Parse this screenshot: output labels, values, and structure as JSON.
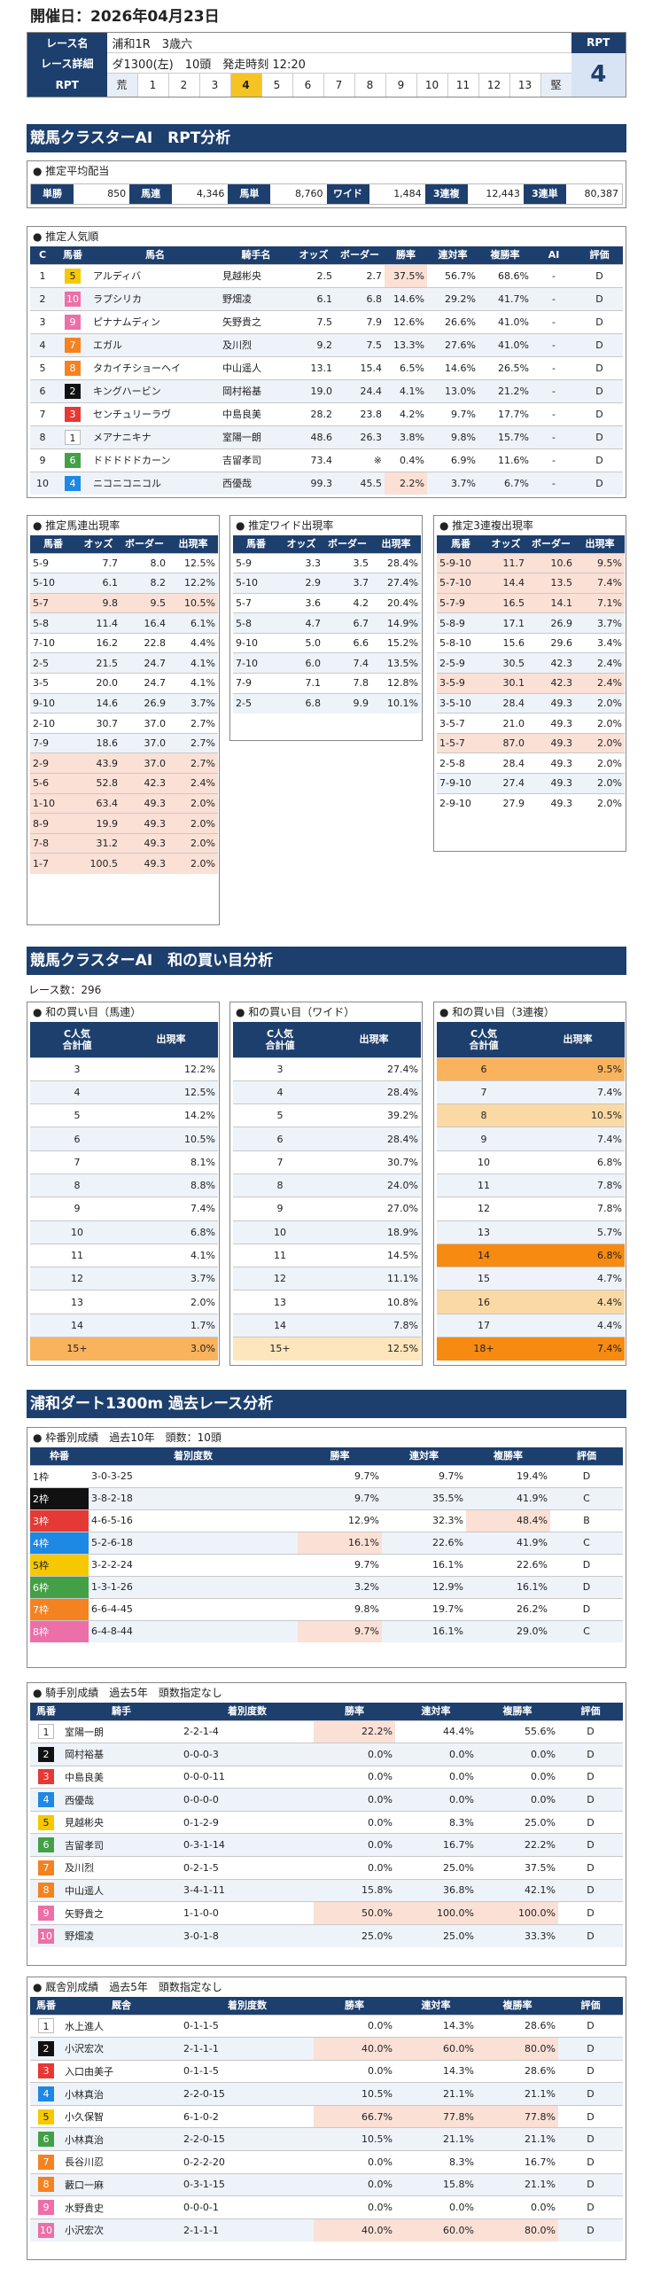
{
  "header": {
    "title": "開催日：2026年04月23日"
  },
  "race": {
    "name_label": "レース名",
    "name": "浦和1R　3歳六",
    "detail_label": "レース詳細",
    "detail": "ダ1300(左)　10頭　発走時刻 12:20",
    "rpt_label": "RPT",
    "rpt_scale": [
      "荒",
      "1",
      "2",
      "3",
      "4",
      "5",
      "6",
      "7",
      "8",
      "9",
      "10",
      "11",
      "12",
      "13",
      "堅"
    ],
    "rpt_selected": 4,
    "rpt_box_label": "RPT",
    "rpt_value": "4"
  },
  "sec1": {
    "title": "競馬クラスターAI　RPT分析"
  },
  "payout": {
    "title": "推定平均配当",
    "items": [
      {
        "label": "単勝",
        "value": "850"
      },
      {
        "label": "馬連",
        "value": "4,346"
      },
      {
        "label": "馬単",
        "value": "8,760"
      },
      {
        "label": "ワイド",
        "value": "1,484"
      },
      {
        "label": "3連複",
        "value": "12,443"
      },
      {
        "label": "3連単",
        "value": "80,387"
      }
    ]
  },
  "popularity": {
    "title": "推定人気順",
    "headers": [
      "C",
      "馬番",
      "馬名",
      "騎手名",
      "オッズ",
      "ボーダー",
      "勝率",
      "連対率",
      "複勝率",
      "AI",
      "評価"
    ],
    "rows": [
      [
        "1",
        "5",
        "アルディバ",
        "見越彬央",
        "2.5",
        "2.7",
        "37.5%",
        "56.7%",
        "68.6%",
        "-",
        "D"
      ],
      [
        "2",
        "10",
        "ラプシリカ",
        "野畑凌",
        "6.1",
        "6.8",
        "14.6%",
        "29.2%",
        "41.7%",
        "-",
        "D"
      ],
      [
        "3",
        "9",
        "ピナナムディン",
        "矢野貴之",
        "7.5",
        "7.9",
        "12.6%",
        "26.6%",
        "41.0%",
        "-",
        "D"
      ],
      [
        "4",
        "7",
        "エガル",
        "及川烈",
        "9.2",
        "7.5",
        "13.3%",
        "27.6%",
        "41.0%",
        "-",
        "D"
      ],
      [
        "5",
        "8",
        "タカイチショーヘイ",
        "中山遥人",
        "13.1",
        "15.4",
        "6.5%",
        "14.6%",
        "26.5%",
        "-",
        "D"
      ],
      [
        "6",
        "2",
        "キングハービン",
        "岡村裕基",
        "19.0",
        "24.4",
        "4.1%",
        "13.0%",
        "21.2%",
        "-",
        "D"
      ],
      [
        "7",
        "3",
        "センチュリーラヴ",
        "中島良美",
        "28.2",
        "23.8",
        "4.2%",
        "9.7%",
        "17.7%",
        "-",
        "D"
      ],
      [
        "8",
        "1",
        "メアナニキナ",
        "室陽一朗",
        "48.6",
        "26.3",
        "3.8%",
        "9.8%",
        "15.7%",
        "-",
        "D"
      ],
      [
        "9",
        "6",
        "ドドドドドカーン",
        "吉留孝司",
        "73.4",
        "※",
        "0.4%",
        "6.9%",
        "11.6%",
        "-",
        "D"
      ],
      [
        "10",
        "4",
        "ニコニコニコル",
        "西優哉",
        "99.3",
        "45.5",
        "2.2%",
        "3.7%",
        "6.7%",
        "-",
        "D"
      ]
    ]
  },
  "umaren": {
    "title": "推定馬連出現率",
    "headers": [
      "馬番",
      "オッズ",
      "ボーダー",
      "出現率"
    ],
    "rows": [
      [
        "5-9",
        "7.7",
        "8.0",
        "12.5%"
      ],
      [
        "5-10",
        "6.1",
        "8.2",
        "12.2%"
      ],
      [
        "5-7",
        "9.8",
        "9.5",
        "10.5%"
      ],
      [
        "5-8",
        "11.4",
        "16.4",
        "6.1%"
      ],
      [
        "7-10",
        "16.2",
        "22.8",
        "4.4%"
      ],
      [
        "2-5",
        "21.5",
        "24.7",
        "4.1%"
      ],
      [
        "3-5",
        "20.0",
        "24.7",
        "4.1%"
      ],
      [
        "9-10",
        "14.6",
        "26.9",
        "3.7%"
      ],
      [
        "2-10",
        "30.7",
        "37.0",
        "2.7%"
      ],
      [
        "7-9",
        "18.6",
        "37.0",
        "2.7%"
      ],
      [
        "2-9",
        "43.9",
        "37.0",
        "2.7%"
      ],
      [
        "5-6",
        "52.8",
        "42.3",
        "2.4%"
      ],
      [
        "1-10",
        "63.4",
        "49.3",
        "2.0%"
      ],
      [
        "8-9",
        "19.9",
        "49.3",
        "2.0%"
      ],
      [
        "7-8",
        "31.2",
        "49.3",
        "2.0%"
      ],
      [
        "1-7",
        "100.5",
        "49.3",
        "2.0%"
      ]
    ]
  },
  "wide": {
    "title": "推定ワイド出現率",
    "headers": [
      "馬番",
      "オッズ",
      "ボーダー",
      "出現率"
    ],
    "rows": [
      [
        "5-9",
        "3.3",
        "3.5",
        "28.4%"
      ],
      [
        "5-10",
        "2.9",
        "3.7",
        "27.4%"
      ],
      [
        "5-7",
        "3.6",
        "4.2",
        "20.4%"
      ],
      [
        "5-8",
        "4.7",
        "6.7",
        "14.9%"
      ],
      [
        "9-10",
        "5.0",
        "6.6",
        "15.2%"
      ],
      [
        "7-10",
        "6.0",
        "7.4",
        "13.5%"
      ],
      [
        "7-9",
        "7.1",
        "7.8",
        "12.8%"
      ],
      [
        "2-5",
        "6.8",
        "9.9",
        "10.1%"
      ]
    ]
  },
  "sanren": {
    "title": "推定3連複出現率",
    "headers": [
      "馬番",
      "オッズ",
      "ボーダー",
      "出現率"
    ],
    "rows": [
      [
        "5-9-10",
        "11.7",
        "10.6",
        "9.5%"
      ],
      [
        "5-7-10",
        "14.4",
        "13.5",
        "7.4%"
      ],
      [
        "5-7-9",
        "16.5",
        "14.1",
        "7.1%"
      ],
      [
        "5-8-9",
        "17.1",
        "26.9",
        "3.7%"
      ],
      [
        "5-8-10",
        "15.6",
        "29.6",
        "3.4%"
      ],
      [
        "2-5-9",
        "30.5",
        "42.3",
        "2.4%"
      ],
      [
        "3-5-9",
        "30.1",
        "42.3",
        "2.4%"
      ],
      [
        "3-5-10",
        "28.4",
        "49.3",
        "2.0%"
      ],
      [
        "3-5-7",
        "21.0",
        "49.3",
        "2.0%"
      ],
      [
        "1-5-7",
        "87.0",
        "49.3",
        "2.0%"
      ],
      [
        "2-5-8",
        "28.4",
        "49.3",
        "2.0%"
      ],
      [
        "7-9-10",
        "27.4",
        "49.3",
        "2.0%"
      ],
      [
        "2-9-10",
        "27.9",
        "49.3",
        "2.0%"
      ]
    ]
  },
  "sec2": {
    "title": "競馬クラスターAI　和の買い目分析",
    "count": "レース数：296"
  },
  "sum_umaren": {
    "title": "和の買い目（馬連）",
    "headers": [
      "C人気\n合計値",
      "出現率"
    ],
    "rows": [
      [
        "3",
        "12.2%"
      ],
      [
        "4",
        "12.5%"
      ],
      [
        "5",
        "14.2%"
      ],
      [
        "6",
        "10.5%"
      ],
      [
        "7",
        "8.1%"
      ],
      [
        "8",
        "8.8%"
      ],
      [
        "9",
        "7.4%"
      ],
      [
        "10",
        "6.8%"
      ],
      [
        "11",
        "4.1%"
      ],
      [
        "12",
        "3.7%"
      ],
      [
        "13",
        "2.0%"
      ],
      [
        "14",
        "1.7%"
      ],
      [
        "15+",
        "3.0%"
      ]
    ]
  },
  "sum_wide": {
    "title": "和の買い目（ワイド）",
    "headers": [
      "C人気\n合計値",
      "出現率"
    ],
    "rows": [
      [
        "3",
        "27.4%"
      ],
      [
        "4",
        "28.4%"
      ],
      [
        "5",
        "39.2%"
      ],
      [
        "6",
        "28.4%"
      ],
      [
        "7",
        "30.7%"
      ],
      [
        "8",
        "24.0%"
      ],
      [
        "9",
        "27.0%"
      ],
      [
        "10",
        "18.9%"
      ],
      [
        "11",
        "14.5%"
      ],
      [
        "12",
        "11.1%"
      ],
      [
        "13",
        "10.8%"
      ],
      [
        "14",
        "7.8%"
      ],
      [
        "15+",
        "12.5%"
      ]
    ]
  },
  "sum_sanren": {
    "title": "和の買い目（3連複）",
    "headers": [
      "C人気\n合計値",
      "出現率"
    ],
    "rows": [
      [
        "6",
        "9.5%"
      ],
      [
        "7",
        "7.4%"
      ],
      [
        "8",
        "10.5%"
      ],
      [
        "9",
        "7.4%"
      ],
      [
        "10",
        "6.8%"
      ],
      [
        "11",
        "7.8%"
      ],
      [
        "12",
        "7.8%"
      ],
      [
        "13",
        "5.7%"
      ],
      [
        "14",
        "6.8%"
      ],
      [
        "15",
        "4.7%"
      ],
      [
        "16",
        "4.4%"
      ],
      [
        "17",
        "4.4%"
      ],
      [
        "18+",
        "7.4%"
      ]
    ]
  },
  "sec3": {
    "title": "浦和ダート1300m 過去レース分析"
  },
  "waku": {
    "title": "枠番別成績　過去10年　頭数：10頭",
    "headers": [
      "枠番",
      "着別度数",
      "勝率",
      "連対率",
      "複勝率",
      "評価"
    ],
    "rows": [
      [
        "1枠",
        "3-0-3-25",
        "9.7%",
        "9.7%",
        "19.4%",
        "D"
      ],
      [
        "2枠",
        "3-8-2-18",
        "9.7%",
        "35.5%",
        "41.9%",
        "C"
      ],
      [
        "3枠",
        "4-6-5-16",
        "12.9%",
        "32.3%",
        "48.4%",
        "B"
      ],
      [
        "4枠",
        "5-2-6-18",
        "16.1%",
        "22.6%",
        "41.9%",
        "C"
      ],
      [
        "5枠",
        "3-2-2-24",
        "9.7%",
        "16.1%",
        "22.6%",
        "D"
      ],
      [
        "6枠",
        "1-3-1-26",
        "3.2%",
        "12.9%",
        "16.1%",
        "D"
      ],
      [
        "7枠",
        "6-6-4-45",
        "9.8%",
        "19.7%",
        "26.2%",
        "D"
      ],
      [
        "8枠",
        "6-4-8-44",
        "9.7%",
        "16.1%",
        "29.0%",
        "C"
      ]
    ]
  },
  "jockey": {
    "title": "騎手別成績　過去5年　頭数指定なし",
    "headers": [
      "馬番",
      "騎手",
      "着別度数",
      "勝率",
      "連対率",
      "複勝率",
      "評価"
    ],
    "rows": [
      [
        "1",
        "室陽一朗",
        "2-2-1-4",
        "22.2%",
        "44.4%",
        "55.6%",
        "D"
      ],
      [
        "2",
        "岡村裕基",
        "0-0-0-3",
        "0.0%",
        "0.0%",
        "0.0%",
        "D"
      ],
      [
        "3",
        "中島良美",
        "0-0-0-11",
        "0.0%",
        "0.0%",
        "0.0%",
        "D"
      ],
      [
        "4",
        "西優哉",
        "0-0-0-0",
        "0.0%",
        "0.0%",
        "0.0%",
        "D"
      ],
      [
        "5",
        "見越彬央",
        "0-1-2-9",
        "0.0%",
        "8.3%",
        "25.0%",
        "D"
      ],
      [
        "6",
        "吉留孝司",
        "0-3-1-14",
        "0.0%",
        "16.7%",
        "22.2%",
        "D"
      ],
      [
        "7",
        "及川烈",
        "0-2-1-5",
        "0.0%",
        "25.0%",
        "37.5%",
        "D"
      ],
      [
        "8",
        "中山遥人",
        "3-4-1-11",
        "15.8%",
        "36.8%",
        "42.1%",
        "D"
      ],
      [
        "9",
        "矢野貴之",
        "1-1-0-0",
        "50.0%",
        "100.0%",
        "100.0%",
        "D"
      ],
      [
        "10",
        "野畑凌",
        "3-0-1-8",
        "25.0%",
        "25.0%",
        "33.3%",
        "D"
      ]
    ]
  },
  "trainer": {
    "title": "厩舎別成績　過去5年　頭数指定なし",
    "headers": [
      "馬番",
      "厩舎",
      "着別度数",
      "勝率",
      "連対率",
      "複勝率",
      "評価"
    ],
    "rows": [
      [
        "1",
        "水上進人",
        "0-1-1-5",
        "0.0%",
        "14.3%",
        "28.6%",
        "D"
      ],
      [
        "2",
        "小沢宏次",
        "2-1-1-1",
        "40.0%",
        "60.0%",
        "80.0%",
        "D"
      ],
      [
        "3",
        "入口由美子",
        "0-1-1-5",
        "0.0%",
        "14.3%",
        "28.6%",
        "D"
      ],
      [
        "4",
        "小林真治",
        "2-2-0-15",
        "10.5%",
        "21.1%",
        "21.1%",
        "D"
      ],
      [
        "5",
        "小久保智",
        "6-1-0-2",
        "66.7%",
        "77.8%",
        "77.8%",
        "D"
      ],
      [
        "6",
        "小林真治",
        "2-2-0-15",
        "10.5%",
        "21.1%",
        "21.1%",
        "D"
      ],
      [
        "7",
        "長谷川忍",
        "0-2-2-20",
        "0.0%",
        "8.3%",
        "16.7%",
        "D"
      ],
      [
        "8",
        "藪口一麻",
        "0-3-1-15",
        "0.0%",
        "15.8%",
        "21.1%",
        "D"
      ],
      [
        "9",
        "水野貴史",
        "0-0-0-1",
        "0.0%",
        "0.0%",
        "0.0%",
        "D"
      ],
      [
        "10",
        "小沢宏次",
        "2-1-1-1",
        "40.0%",
        "60.0%",
        "80.0%",
        "D"
      ]
    ]
  }
}
